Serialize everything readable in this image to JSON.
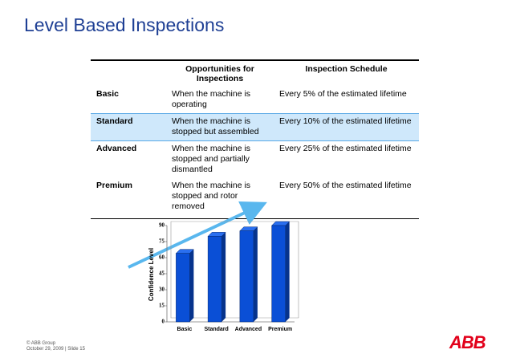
{
  "header": {
    "title": "Level Based Inspections"
  },
  "table": {
    "columns": [
      "Opportunities for Inspections",
      "Inspection Schedule"
    ],
    "rows": [
      [
        "Basic",
        "When the machine is operating",
        "Every 5% of  the estimated lifetime"
      ],
      [
        "Standard",
        "When the machine is stopped but assembled",
        "Every 10% of  the estimated lifetime"
      ],
      [
        "Advanced",
        "When the machine is stopped and partially dismantled",
        "Every 25% of  the estimated lifetime"
      ],
      [
        "Premium",
        "When the machine is stopped and rotor removed",
        "Every 50% of  the estimated lifetime"
      ]
    ]
  },
  "chart_data": {
    "type": "bar",
    "y_label": "Confidence Level",
    "categories": [
      "Basic",
      "Standard",
      "Advanced",
      "Premium"
    ],
    "values": [
      64,
      80,
      85,
      90
    ],
    "color": "#0a4fd6",
    "ylim": [
      0,
      90
    ],
    "yticks": [
      0,
      15,
      30,
      45,
      60,
      75,
      90
    ]
  },
  "footer": {
    "copyright": "© ABB Group",
    "date": "October 29, 2009 | Slide 15",
    "logo": "ABB"
  }
}
